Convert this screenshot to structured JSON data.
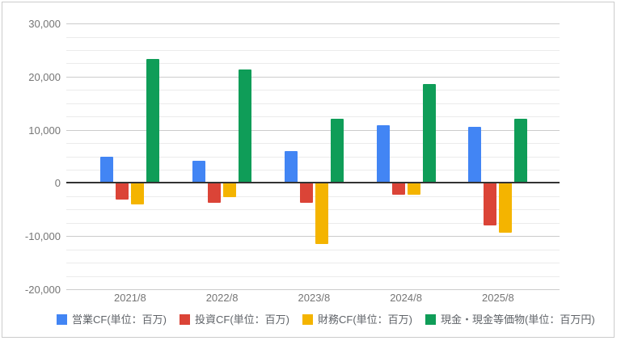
{
  "style": {
    "background": "#ffffff",
    "border_color": "#cccccc",
    "axis_line_color": "#333333",
    "major_gridline_color": "#cccccc",
    "minor_gridline_color": "#ebebeb",
    "axis_label_color": "#757575",
    "legend_label_color": "#5f6368"
  },
  "chart_data": {
    "type": "bar",
    "title": "",
    "xlabel": "",
    "ylabel": "",
    "categories": [
      "2021/8",
      "2022/8",
      "2023/8",
      "2024/8",
      "2025/8"
    ],
    "series": [
      {
        "name": "営業CF(単位：百万)",
        "color": "#4285F4",
        "values": [
          5000,
          4200,
          6000,
          10900,
          10500
        ]
      },
      {
        "name": "投資CF(単位：百万)",
        "color": "#DB4437",
        "values": [
          -3100,
          -3700,
          -3800,
          -2300,
          -8000
        ]
      },
      {
        "name": "財務CF(単位：百万)",
        "color": "#F4B400",
        "values": [
          -4000,
          -2700,
          -11500,
          -2200,
          -9400
        ]
      },
      {
        "name": "現金・現金等価物(単位：百万円)",
        "color": "#0F9D58",
        "values": [
          23300,
          21300,
          12100,
          18600,
          12100
        ]
      }
    ],
    "ylim": [
      -20000,
      30000
    ],
    "y_major_step": 10000,
    "y_minor_step": 2500,
    "y_tick_labels": [
      "30,000",
      "20,000",
      "10,000",
      "0",
      "-10,000",
      "-20,000"
    ],
    "grid": true,
    "legend_position": "bottom"
  }
}
